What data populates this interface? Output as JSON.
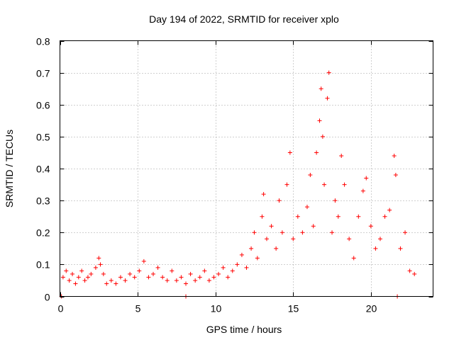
{
  "chart_data": {
    "type": "scatter",
    "title": "Day 194 of 2022, SRMTID for receiver xplo",
    "xlabel": "GPS time / hours",
    "ylabel": "SRMTID / TECUs",
    "xlim": [
      0,
      24
    ],
    "ylim": [
      0,
      0.8
    ],
    "xticks": [
      0,
      5,
      10,
      15,
      20
    ],
    "xtick_labels": [
      "0",
      "5",
      "10",
      "15",
      "20"
    ],
    "yticks": [
      0,
      0.1,
      0.2,
      0.3,
      0.4,
      0.5,
      0.6,
      0.7,
      0.8
    ],
    "ytick_labels": [
      "0",
      "0.1",
      "0.2",
      "0.3",
      "0.4",
      "0.5",
      "0.6",
      "0.7",
      "0.8"
    ],
    "grid": true,
    "marker": "+",
    "color": "#ff0000",
    "series": [
      {
        "name": "SRMTID",
        "points": [
          [
            0.1,
            0.0
          ],
          [
            8.1,
            0.0
          ],
          [
            21.7,
            0.0
          ],
          [
            0.2,
            0.06
          ],
          [
            0.4,
            0.08
          ],
          [
            0.6,
            0.05
          ],
          [
            0.8,
            0.07
          ],
          [
            1.0,
            0.04
          ],
          [
            1.2,
            0.06
          ],
          [
            1.4,
            0.08
          ],
          [
            1.6,
            0.05
          ],
          [
            1.8,
            0.06
          ],
          [
            2.0,
            0.07
          ],
          [
            2.3,
            0.09
          ],
          [
            2.5,
            0.12
          ],
          [
            2.6,
            0.1
          ],
          [
            2.8,
            0.07
          ],
          [
            3.0,
            0.04
          ],
          [
            3.3,
            0.05
          ],
          [
            3.6,
            0.04
          ],
          [
            3.9,
            0.06
          ],
          [
            4.2,
            0.05
          ],
          [
            4.5,
            0.07
          ],
          [
            4.8,
            0.06
          ],
          [
            5.1,
            0.08
          ],
          [
            5.4,
            0.11
          ],
          [
            5.7,
            0.06
          ],
          [
            6.0,
            0.07
          ],
          [
            6.3,
            0.09
          ],
          [
            6.6,
            0.06
          ],
          [
            6.9,
            0.05
          ],
          [
            7.2,
            0.08
          ],
          [
            7.5,
            0.05
          ],
          [
            7.8,
            0.06
          ],
          [
            8.1,
            0.04
          ],
          [
            8.4,
            0.07
          ],
          [
            8.7,
            0.05
          ],
          [
            9.0,
            0.06
          ],
          [
            9.3,
            0.08
          ],
          [
            9.6,
            0.05
          ],
          [
            9.9,
            0.06
          ],
          [
            10.2,
            0.07
          ],
          [
            10.5,
            0.09
          ],
          [
            10.8,
            0.06
          ],
          [
            11.1,
            0.08
          ],
          [
            11.4,
            0.1
          ],
          [
            11.7,
            0.13
          ],
          [
            12.0,
            0.09
          ],
          [
            12.3,
            0.15
          ],
          [
            12.5,
            0.2
          ],
          [
            12.7,
            0.12
          ],
          [
            13.0,
            0.25
          ],
          [
            13.1,
            0.32
          ],
          [
            13.3,
            0.18
          ],
          [
            13.6,
            0.22
          ],
          [
            13.9,
            0.15
          ],
          [
            14.1,
            0.3
          ],
          [
            14.3,
            0.2
          ],
          [
            14.6,
            0.35
          ],
          [
            14.8,
            0.45
          ],
          [
            15.0,
            0.18
          ],
          [
            15.3,
            0.25
          ],
          [
            15.6,
            0.2
          ],
          [
            15.9,
            0.28
          ],
          [
            16.1,
            0.38
          ],
          [
            16.3,
            0.22
          ],
          [
            16.5,
            0.45
          ],
          [
            16.7,
            0.55
          ],
          [
            16.8,
            0.65
          ],
          [
            16.9,
            0.5
          ],
          [
            17.0,
            0.35
          ],
          [
            17.2,
            0.62
          ],
          [
            17.3,
            0.7
          ],
          [
            17.5,
            0.2
          ],
          [
            17.7,
            0.3
          ],
          [
            17.9,
            0.25
          ],
          [
            18.1,
            0.44
          ],
          [
            18.3,
            0.35
          ],
          [
            18.6,
            0.18
          ],
          [
            18.9,
            0.12
          ],
          [
            19.2,
            0.25
          ],
          [
            19.5,
            0.33
          ],
          [
            19.7,
            0.37
          ],
          [
            20.0,
            0.22
          ],
          [
            20.3,
            0.15
          ],
          [
            20.6,
            0.18
          ],
          [
            20.9,
            0.25
          ],
          [
            21.2,
            0.27
          ],
          [
            21.5,
            0.44
          ],
          [
            21.6,
            0.38
          ],
          [
            21.9,
            0.15
          ],
          [
            22.2,
            0.2
          ],
          [
            22.5,
            0.08
          ],
          [
            22.8,
            0.07
          ]
        ]
      }
    ]
  }
}
